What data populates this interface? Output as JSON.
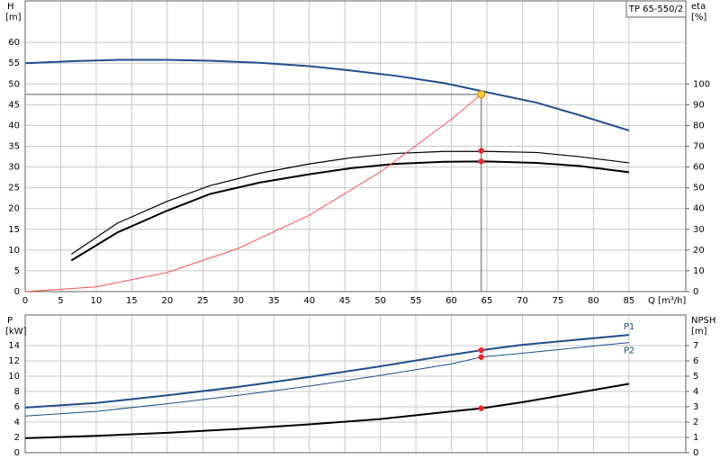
{
  "chart_data": [
    {
      "type": "line",
      "legend_box": "TP 65-550/2",
      "y_label": "H",
      "y_unit": "[m]",
      "y2_label": "eta",
      "y2_unit": "[%]",
      "x_label": "Q [m³/h]",
      "xlim": [
        0,
        93
      ],
      "xticks": [
        0,
        5,
        10,
        15,
        20,
        25,
        30,
        35,
        40,
        45,
        50,
        55,
        60,
        65,
        70,
        75,
        80,
        85
      ],
      "ylim": [
        0,
        70
      ],
      "yticks": [
        0,
        5,
        10,
        15,
        20,
        25,
        30,
        35,
        40,
        45,
        50,
        55,
        60
      ],
      "y2lim": [
        0,
        140
      ],
      "y2ticks": [
        0,
        10,
        20,
        30,
        40,
        50,
        60,
        70,
        80,
        90,
        100
      ],
      "grid": true,
      "xtick_labels": true,
      "series": [
        {
          "color": "#1f4e8c",
          "width": 2,
          "axis": "y",
          "x": [
            0,
            7,
            13,
            20,
            26,
            33,
            40,
            46,
            52,
            59,
            65,
            72,
            78,
            85
          ],
          "values": [
            55,
            55.5,
            55.8,
            55.8,
            55.6,
            55.1,
            54.3,
            53.2,
            52,
            50.2,
            48,
            45.5,
            42.5,
            38.8
          ],
          "marker": {
            "x": 64.2,
            "y": 47.5,
            "color": "#ffd030"
          },
          "crosshair": true
        },
        {
          "color": "#000000",
          "width": 1.2,
          "axis": "y2",
          "x": [
            6.5,
            13,
            20,
            26,
            33,
            40,
            46,
            52,
            59,
            65,
            72,
            78,
            85
          ],
          "values": [
            18,
            33,
            43.5,
            51,
            57,
            61.5,
            64.5,
            66.5,
            67.5,
            67.5,
            67,
            65,
            62
          ],
          "marker": {
            "x": 64.2,
            "y": 67.8,
            "color": "#ff2020"
          }
        },
        {
          "color": "#000000",
          "width": 2,
          "axis": "y2",
          "x": [
            6.5,
            13,
            20,
            26,
            33,
            40,
            46,
            52,
            59,
            65,
            72,
            78,
            85
          ],
          "values": [
            15,
            28.5,
            39,
            47,
            52.5,
            56.5,
            59.5,
            61.5,
            62.5,
            62.7,
            62,
            60.5,
            57.5
          ],
          "marker": {
            "x": 64.2,
            "y": 62.7,
            "color": "#ff2020"
          }
        },
        {
          "color": "#ff5050",
          "width": 1,
          "axis": "y",
          "x": [
            0,
            10,
            20,
            30,
            40,
            50,
            60,
            64.2
          ],
          "values": [
            0,
            1.15,
            4.6,
            10.4,
            18.4,
            28.8,
            41.5,
            47.5
          ]
        }
      ]
    },
    {
      "type": "line",
      "y_label": "P",
      "y_unit": "[kW]",
      "y2_label": "NPSH",
      "y2_unit": "[m]",
      "xlim": [
        0,
        93
      ],
      "xticks": [
        0,
        5,
        10,
        15,
        20,
        25,
        30,
        35,
        40,
        45,
        50,
        55,
        60,
        65,
        70,
        75,
        80,
        85
      ],
      "ylim": [
        0,
        18
      ],
      "yticks": [
        0,
        2,
        4,
        6,
        8,
        10,
        12,
        14
      ],
      "y2lim": [
        0,
        9
      ],
      "y2ticks": [
        0,
        1,
        2,
        3,
        4,
        5,
        6,
        7
      ],
      "grid": true,
      "xtick_labels": false,
      "series": [
        {
          "name": "P1",
          "color": "#1f4e8c",
          "width": 2,
          "axis": "y",
          "x": [
            0,
            10,
            20,
            30,
            40,
            50,
            60,
            64.2,
            70,
            85
          ],
          "values": [
            5.9,
            6.5,
            7.5,
            8.6,
            9.9,
            11.3,
            12.8,
            13.4,
            14.1,
            15.4
          ],
          "marker": {
            "x": 64.2,
            "y": 13.4,
            "color": "#ff2020"
          }
        },
        {
          "name": "P2",
          "color": "#1f4e8c",
          "width": 1,
          "axis": "y",
          "x": [
            0,
            10,
            20,
            30,
            40,
            50,
            60,
            64.2,
            70,
            85
          ],
          "values": [
            4.8,
            5.4,
            6.4,
            7.5,
            8.7,
            10.1,
            11.6,
            12.5,
            13.0,
            14.4
          ],
          "marker": {
            "x": 64.2,
            "y": 12.5,
            "color": "#ff2020"
          }
        },
        {
          "color": "#000000",
          "width": 2,
          "axis": "y2",
          "x": [
            0,
            10,
            20,
            30,
            40,
            50,
            60,
            64.2,
            70,
            85
          ],
          "values": [
            0.95,
            1.1,
            1.3,
            1.55,
            1.85,
            2.2,
            2.7,
            2.9,
            3.3,
            4.5
          ],
          "marker": {
            "x": 64.2,
            "y": 2.9,
            "color": "#ff2020"
          }
        }
      ]
    }
  ]
}
